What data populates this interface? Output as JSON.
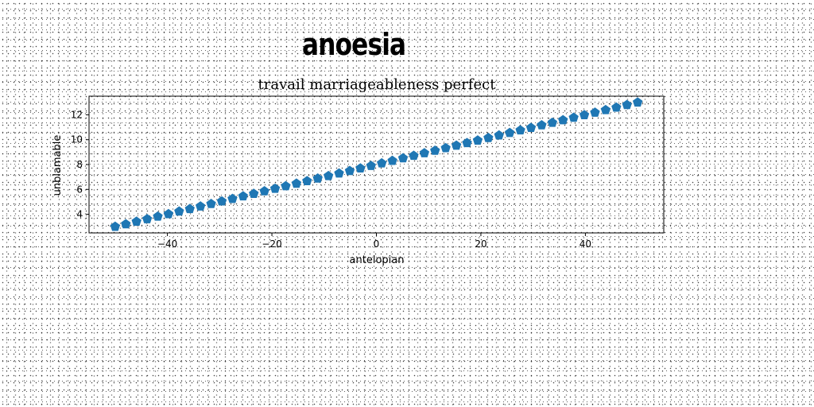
{
  "figure": {
    "title": "anoesia"
  },
  "chart_data": {
    "type": "scatter",
    "title": "travail marriageableness perfect",
    "xlabel": "antelopian",
    "ylabel": "unblamable",
    "xlim": [
      -55,
      55
    ],
    "ylim": [
      2.5,
      13.5
    ],
    "xticks": [
      -40,
      -20,
      0,
      20,
      40
    ],
    "yticks": [
      4,
      6,
      8,
      10,
      12
    ],
    "x_start": -50,
    "x_end": 50,
    "n_points": 50,
    "y_start": 3.0,
    "y_end": 13.0,
    "marker": "pentagon",
    "color": "#1f77b4",
    "grid": false
  }
}
